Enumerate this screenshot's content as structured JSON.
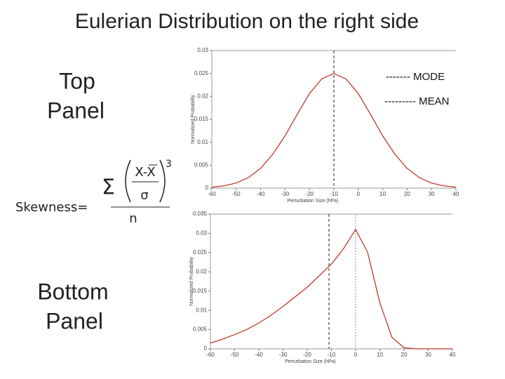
{
  "slide": {
    "title": "Eulerian Distribution on the right side",
    "top_label": [
      "Top",
      "Panel"
    ],
    "bottom_label": [
      "Bottom",
      "Panel"
    ],
    "legend": [
      "------- MODE",
      "--------- MEAN"
    ],
    "formula": {
      "lhs": "Skewness=",
      "sum": "Σ",
      "numerator": "X-X",
      "denominator": "σ",
      "power": "3",
      "n": "n"
    }
  },
  "chart_data": [
    {
      "type": "line",
      "xlabel": "Perturbation Size (hPa)",
      "ylabel": "Normalized Probability",
      "x": [
        -60,
        -55,
        -50,
        -45,
        -40,
        -35,
        -30,
        -25,
        -20,
        -15,
        -10,
        -5,
        0,
        5,
        10,
        15,
        20,
        25,
        30,
        35,
        40
      ],
      "series": [
        {
          "color": "#c0392b",
          "values": [
            0.0002,
            0.0005,
            0.0011,
            0.0023,
            0.0043,
            0.0074,
            0.0114,
            0.0161,
            0.0206,
            0.0238,
            0.025,
            0.0238,
            0.0206,
            0.0161,
            0.0114,
            0.0074,
            0.0043,
            0.0023,
            0.0011,
            0.0005,
            0.0002
          ]
        }
      ],
      "vlines": [
        -10
      ],
      "xlim": [
        -60,
        40
      ],
      "xticks": [
        -60,
        -50,
        -40,
        -30,
        -20,
        -10,
        0,
        10,
        20,
        30,
        40
      ],
      "ylim": [
        0,
        0.03
      ],
      "yticks": [
        0,
        0.005,
        0.01,
        0.015,
        0.02,
        0.025,
        0.03
      ]
    },
    {
      "type": "line",
      "xlabel": "Perturbation Size (hPa)",
      "ylabel": "Normalized Probability",
      "x": [
        -60,
        -55,
        -50,
        -45,
        -40,
        -35,
        -30,
        -25,
        -20,
        -15,
        -10,
        -5,
        0,
        5,
        10,
        15,
        20,
        25,
        30,
        35,
        40
      ],
      "series": [
        {
          "color": "#c0392b",
          "values": [
            0.0015,
            0.0025,
            0.0037,
            0.005,
            0.0067,
            0.0087,
            0.011,
            0.0135,
            0.016,
            0.019,
            0.022,
            0.026,
            0.031,
            0.025,
            0.012,
            0.003,
            0.0003,
            0,
            0,
            0,
            0
          ]
        }
      ],
      "vlines": [
        -11,
        0
      ],
      "xlim": [
        -60,
        40
      ],
      "xticks": [
        -60,
        -50,
        -40,
        -30,
        -20,
        -10,
        0,
        10,
        20,
        30,
        40
      ],
      "ylim": [
        0,
        0.035
      ],
      "yticks": [
        0,
        0.005,
        0.01,
        0.015,
        0.02,
        0.025,
        0.03,
        0.035
      ]
    }
  ]
}
